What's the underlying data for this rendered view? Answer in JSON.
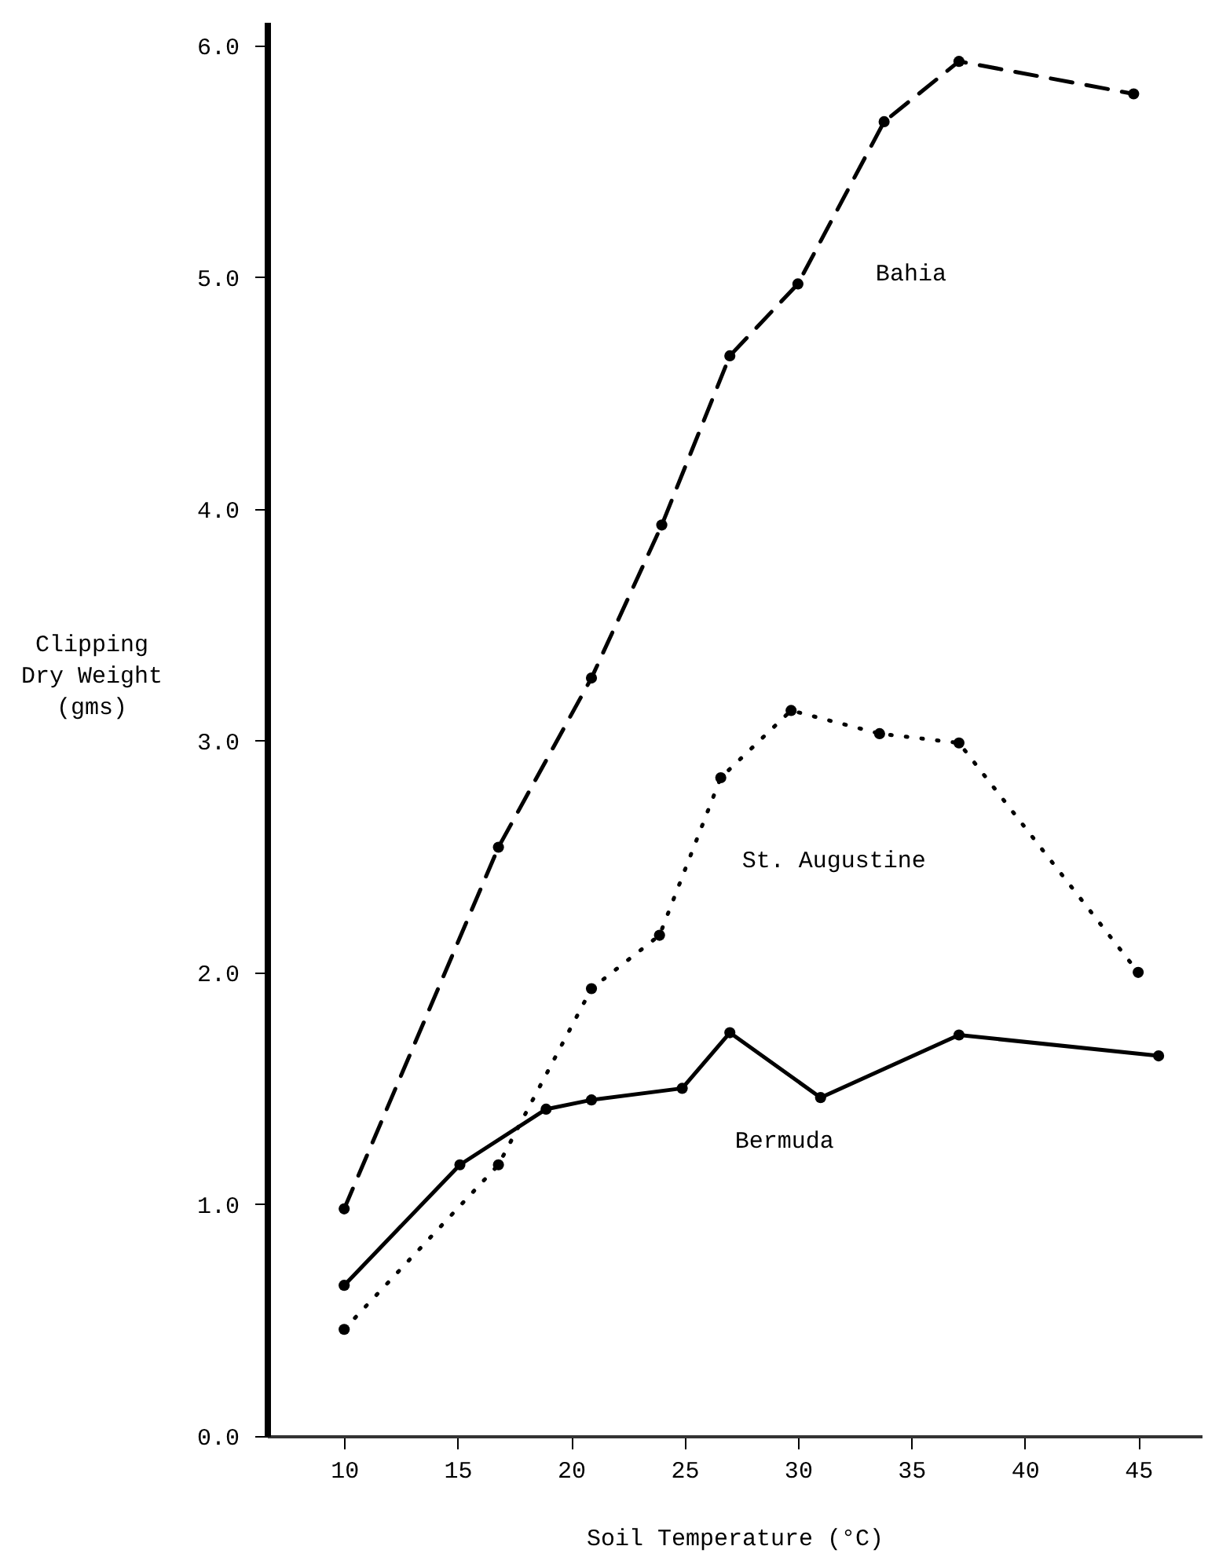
{
  "chart_data": {
    "type": "line",
    "xlabel": "Soil Temperature (°C)",
    "ylabel": "Clipping\nDry Weight\n(gms)",
    "xlim": [
      6.6,
      47.8
    ],
    "xticks": [
      10,
      15,
      20,
      25,
      30,
      35,
      40,
      45
    ],
    "ylim": [
      0,
      6.1
    ],
    "yticks": [
      {
        "value": 0,
        "label": "0.0"
      },
      {
        "value": 1,
        "label": "1.0"
      },
      {
        "value": 2,
        "label": "2.0"
      },
      {
        "value": 3,
        "label": "3.0"
      },
      {
        "value": 4,
        "label": "4.0"
      },
      {
        "value": 5,
        "label": "5.0"
      },
      {
        "value": 6,
        "label": "6.0"
      }
    ],
    "grid": false,
    "legend": false,
    "marker": "circle",
    "series": [
      {
        "name": "Bahia",
        "color": "#000000",
        "line_style": "dashed",
        "x": [
          10,
          16.8,
          20.9,
          24.0,
          27.0,
          30.0,
          33.8,
          37.1,
          44.8
        ],
        "values": [
          0.98,
          2.54,
          3.27,
          3.93,
          4.66,
          4.97,
          5.67,
          5.93,
          5.79
        ]
      },
      {
        "name": "St. Augustine",
        "color": "#000000",
        "line_style": "dotted",
        "x": [
          10,
          16.8,
          20.9,
          23.9,
          26.6,
          29.7,
          33.6,
          37.1,
          45.0
        ],
        "values": [
          0.46,
          1.17,
          1.93,
          2.16,
          2.84,
          3.13,
          3.03,
          2.99,
          2.0
        ]
      },
      {
        "name": "Bermuda",
        "color": "#000000",
        "line_style": "solid",
        "x": [
          10,
          15.1,
          18.9,
          20.9,
          24.9,
          27.0,
          31.0,
          37.1,
          45.9
        ],
        "values": [
          0.65,
          1.17,
          1.41,
          1.45,
          1.5,
          1.74,
          1.46,
          1.73,
          1.64
        ]
      }
    ]
  }
}
